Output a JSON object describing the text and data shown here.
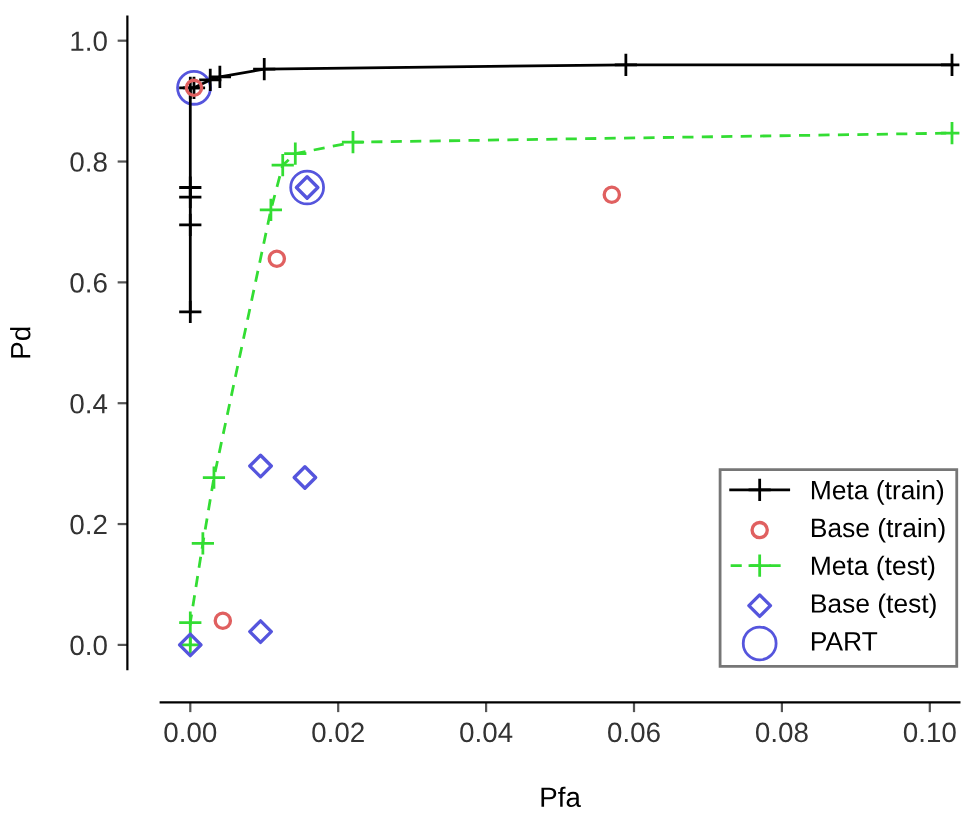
{
  "chart_data": {
    "type": "line",
    "xlabel": "Pfa",
    "ylabel": "Pd",
    "xlim": [
      -0.004,
      0.104
    ],
    "ylim": [
      -0.04,
      1.04
    ],
    "xticks": [
      {
        "value": 0,
        "label": "0.00"
      },
      0.02,
      0.04,
      0.06,
      0.08,
      {
        "value": 0.1,
        "label": "0.10"
      }
    ],
    "yticks": [
      {
        "value": 0,
        "label": "0.0"
      },
      0.2,
      0.4,
      0.6,
      0.8,
      {
        "value": 1,
        "label": "1.0"
      }
    ],
    "legend": "bottom right",
    "grid": false,
    "series": [
      {
        "name": "Meta (train)",
        "color": "#000000",
        "marker": "cross",
        "line_style": "solid",
        "x": [
          0,
          0,
          0,
          0,
          0,
          0.0005,
          0.0027,
          0.004,
          0.01,
          0.0589,
          0.103
        ],
        "values": [
          0.551,
          0.695,
          0.741,
          0.757,
          0.922,
          0.922,
          0.935,
          0.94,
          0.953,
          0.96,
          0.96
        ]
      },
      {
        "name": "Base (train)",
        "type": "scatter",
        "color": "#e06060",
        "marker": "circle",
        "x": [
          0.0005,
          0.0044,
          0.0117,
          0.057
        ],
        "values": [
          0.922,
          0.04,
          0.639,
          0.745
        ]
      },
      {
        "name": "Meta (test)",
        "color": "#33dd33",
        "marker": "cross",
        "line_style": "dashed",
        "x": [
          0,
          0,
          0.0017,
          0.0032,
          0.0109,
          0.0125,
          0.0142,
          0.022,
          0.103
        ],
        "values": [
          0,
          0.037,
          0.168,
          0.277,
          0.72,
          0.794,
          0.813,
          0.832,
          0.847
        ]
      },
      {
        "name": "Base (test)",
        "type": "scatter",
        "color": "#5555dd",
        "marker": "diamond",
        "x": [
          0,
          0.0095,
          0.0155,
          0.0095,
          0.0158
        ],
        "values": [
          0,
          0.296,
          0.277,
          0.022,
          0.757
        ]
      },
      {
        "name": "PART",
        "type": "bubble",
        "color": "#5555dd",
        "marker": "circle",
        "x": [
          0.0005,
          0.0158
        ],
        "values": [
          0.922,
          0.757
        ]
      }
    ]
  }
}
